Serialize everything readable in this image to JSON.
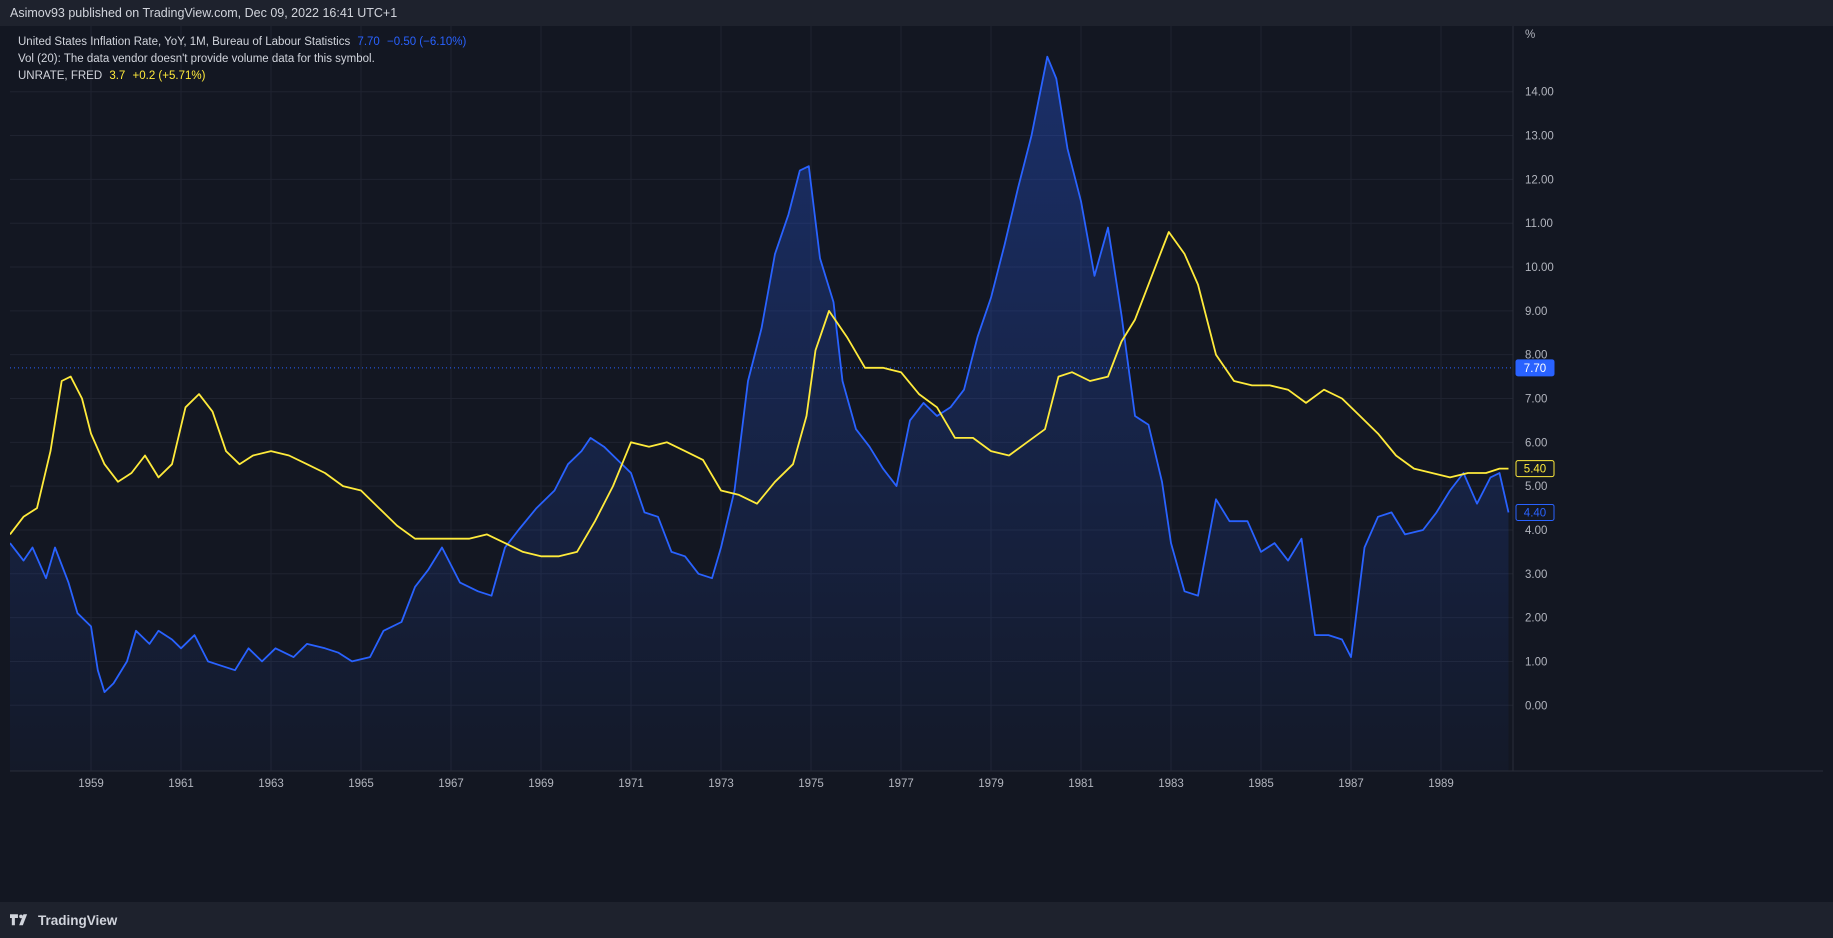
{
  "header": {
    "publish_line": "Asimov93 published on TradingView.com, Dec 09, 2022 16:41 UTC+1"
  },
  "legend": {
    "series1_name": "United States Inflation Rate, YoY, 1M, Bureau of Labour Statistics",
    "series1_value": "7.70",
    "series1_change": "−0.50 (−6.10%)",
    "vol_line": "Vol (20): The data vendor doesn't provide volume data for this symbol.",
    "series2_name": "UNRATE, FRED",
    "series2_value": "3.7",
    "series2_change": "+0.2 (+5.71%)"
  },
  "footer": {
    "brand": "TradingView",
    "logo_icon": "tradingview-logo-icon"
  },
  "colors": {
    "background": "#131722",
    "grid": "#1f2330",
    "inflation": "#2962ff",
    "unemployment": "#ffeb3b",
    "axis_text": "#b2b5be"
  },
  "chart_data": {
    "type": "line",
    "unit_label": "%",
    "xlim": [
      1957.2,
      1990.6
    ],
    "ylim": [
      -1.5,
      15.5
    ],
    "x_ticks": [
      "1959",
      "1961",
      "1963",
      "1965",
      "1967",
      "1969",
      "1971",
      "1973",
      "1975",
      "1977",
      "1979",
      "1981",
      "1983",
      "1985",
      "1987",
      "1989"
    ],
    "y_ticks": [
      "0.00",
      "1.00",
      "2.00",
      "3.00",
      "4.00",
      "5.00",
      "6.00",
      "7.00",
      "8.00",
      "9.00",
      "10.00",
      "11.00",
      "12.00",
      "13.00",
      "14.00"
    ],
    "last_value_labels": [
      "7.70",
      "5.40",
      "4.40"
    ],
    "current_price_line": 7.7,
    "grid": true,
    "series": [
      {
        "name": "United States Inflation Rate, YoY, 1M, Bureau of Labour Statistics",
        "area_fill": true,
        "points": [
          [
            1957.2,
            3.7
          ],
          [
            1957.5,
            3.3
          ],
          [
            1957.7,
            3.6
          ],
          [
            1958.0,
            2.9
          ],
          [
            1958.2,
            3.6
          ],
          [
            1958.5,
            2.8
          ],
          [
            1958.7,
            2.1
          ],
          [
            1959.0,
            1.8
          ],
          [
            1959.15,
            0.8
          ],
          [
            1959.3,
            0.3
          ],
          [
            1959.5,
            0.5
          ],
          [
            1959.8,
            1.0
          ],
          [
            1960.0,
            1.7
          ],
          [
            1960.3,
            1.4
          ],
          [
            1960.5,
            1.7
          ],
          [
            1960.8,
            1.5
          ],
          [
            1961.0,
            1.3
          ],
          [
            1961.3,
            1.6
          ],
          [
            1961.6,
            1.0
          ],
          [
            1961.9,
            0.9
          ],
          [
            1962.2,
            0.8
          ],
          [
            1962.5,
            1.3
          ],
          [
            1962.8,
            1.0
          ],
          [
            1963.1,
            1.3
          ],
          [
            1963.5,
            1.1
          ],
          [
            1963.8,
            1.4
          ],
          [
            1964.2,
            1.3
          ],
          [
            1964.5,
            1.2
          ],
          [
            1964.8,
            1.0
          ],
          [
            1965.2,
            1.1
          ],
          [
            1965.5,
            1.7
          ],
          [
            1965.9,
            1.9
          ],
          [
            1966.2,
            2.7
          ],
          [
            1966.5,
            3.1
          ],
          [
            1966.8,
            3.6
          ],
          [
            1967.2,
            2.8
          ],
          [
            1967.6,
            2.6
          ],
          [
            1967.9,
            2.5
          ],
          [
            1968.2,
            3.6
          ],
          [
            1968.5,
            4.0
          ],
          [
            1968.9,
            4.5
          ],
          [
            1969.3,
            4.9
          ],
          [
            1969.6,
            5.5
          ],
          [
            1969.9,
            5.8
          ],
          [
            1970.1,
            6.1
          ],
          [
            1970.4,
            5.9
          ],
          [
            1970.7,
            5.6
          ],
          [
            1971.0,
            5.3
          ],
          [
            1971.3,
            4.4
          ],
          [
            1971.6,
            4.3
          ],
          [
            1971.9,
            3.5
          ],
          [
            1972.2,
            3.4
          ],
          [
            1972.5,
            3.0
          ],
          [
            1972.8,
            2.9
          ],
          [
            1973.0,
            3.6
          ],
          [
            1973.3,
            4.9
          ],
          [
            1973.6,
            7.4
          ],
          [
            1973.9,
            8.6
          ],
          [
            1974.2,
            10.3
          ],
          [
            1974.5,
            11.2
          ],
          [
            1974.75,
            12.2
          ],
          [
            1974.95,
            12.3
          ],
          [
            1975.2,
            10.2
          ],
          [
            1975.5,
            9.2
          ],
          [
            1975.7,
            7.4
          ],
          [
            1976.0,
            6.3
          ],
          [
            1976.3,
            5.9
          ],
          [
            1976.6,
            5.4
          ],
          [
            1976.9,
            5.0
          ],
          [
            1977.2,
            6.5
          ],
          [
            1977.5,
            6.9
          ],
          [
            1977.8,
            6.6
          ],
          [
            1978.1,
            6.8
          ],
          [
            1978.4,
            7.2
          ],
          [
            1978.7,
            8.4
          ],
          [
            1979.0,
            9.3
          ],
          [
            1979.3,
            10.5
          ],
          [
            1979.6,
            11.8
          ],
          [
            1979.9,
            13.0
          ],
          [
            1980.25,
            14.8
          ],
          [
            1980.45,
            14.3
          ],
          [
            1980.7,
            12.7
          ],
          [
            1981.0,
            11.5
          ],
          [
            1981.3,
            9.8
          ],
          [
            1981.6,
            10.9
          ],
          [
            1981.9,
            8.9
          ],
          [
            1982.2,
            6.6
          ],
          [
            1982.5,
            6.4
          ],
          [
            1982.8,
            5.1
          ],
          [
            1983.0,
            3.7
          ],
          [
            1983.3,
            2.6
          ],
          [
            1983.6,
            2.5
          ],
          [
            1984.0,
            4.7
          ],
          [
            1984.3,
            4.2
          ],
          [
            1984.7,
            4.2
          ],
          [
            1985.0,
            3.5
          ],
          [
            1985.3,
            3.7
          ],
          [
            1985.6,
            3.3
          ],
          [
            1985.9,
            3.8
          ],
          [
            1986.2,
            1.6
          ],
          [
            1986.5,
            1.6
          ],
          [
            1986.8,
            1.5
          ],
          [
            1987.0,
            1.1
          ],
          [
            1987.3,
            3.6
          ],
          [
            1987.6,
            4.3
          ],
          [
            1987.9,
            4.4
          ],
          [
            1988.2,
            3.9
          ],
          [
            1988.6,
            4.0
          ],
          [
            1988.9,
            4.4
          ],
          [
            1989.2,
            4.9
          ],
          [
            1989.5,
            5.3
          ],
          [
            1989.8,
            4.6
          ],
          [
            1990.1,
            5.2
          ],
          [
            1990.3,
            5.3
          ],
          [
            1990.5,
            4.4
          ]
        ]
      },
      {
        "name": "UNRATE, FRED",
        "area_fill": false,
        "points": [
          [
            1957.2,
            3.9
          ],
          [
            1957.5,
            4.3
          ],
          [
            1957.8,
            4.5
          ],
          [
            1958.1,
            5.8
          ],
          [
            1958.35,
            7.4
          ],
          [
            1958.55,
            7.5
          ],
          [
            1958.8,
            7.0
          ],
          [
            1959.0,
            6.2
          ],
          [
            1959.3,
            5.5
          ],
          [
            1959.6,
            5.1
          ],
          [
            1959.9,
            5.3
          ],
          [
            1960.2,
            5.7
          ],
          [
            1960.5,
            5.2
          ],
          [
            1960.8,
            5.5
          ],
          [
            1961.1,
            6.8
          ],
          [
            1961.4,
            7.1
          ],
          [
            1961.7,
            6.7
          ],
          [
            1962.0,
            5.8
          ],
          [
            1962.3,
            5.5
          ],
          [
            1962.6,
            5.7
          ],
          [
            1963.0,
            5.8
          ],
          [
            1963.4,
            5.7
          ],
          [
            1963.8,
            5.5
          ],
          [
            1964.2,
            5.3
          ],
          [
            1964.6,
            5.0
          ],
          [
            1965.0,
            4.9
          ],
          [
            1965.4,
            4.5
          ],
          [
            1965.8,
            4.1
          ],
          [
            1966.2,
            3.8
          ],
          [
            1966.6,
            3.8
          ],
          [
            1967.0,
            3.8
          ],
          [
            1967.4,
            3.8
          ],
          [
            1967.8,
            3.9
          ],
          [
            1968.2,
            3.7
          ],
          [
            1968.6,
            3.5
          ],
          [
            1969.0,
            3.4
          ],
          [
            1969.4,
            3.4
          ],
          [
            1969.8,
            3.5
          ],
          [
            1970.2,
            4.2
          ],
          [
            1970.6,
            5.0
          ],
          [
            1971.0,
            6.0
          ],
          [
            1971.4,
            5.9
          ],
          [
            1971.8,
            6.0
          ],
          [
            1972.2,
            5.8
          ],
          [
            1972.6,
            5.6
          ],
          [
            1973.0,
            4.9
          ],
          [
            1973.4,
            4.8
          ],
          [
            1973.8,
            4.6
          ],
          [
            1974.2,
            5.1
          ],
          [
            1974.6,
            5.5
          ],
          [
            1974.9,
            6.6
          ],
          [
            1975.1,
            8.1
          ],
          [
            1975.4,
            9.0
          ],
          [
            1975.8,
            8.4
          ],
          [
            1976.2,
            7.7
          ],
          [
            1976.6,
            7.7
          ],
          [
            1977.0,
            7.6
          ],
          [
            1977.4,
            7.1
          ],
          [
            1977.8,
            6.8
          ],
          [
            1978.2,
            6.1
          ],
          [
            1978.6,
            6.1
          ],
          [
            1979.0,
            5.8
          ],
          [
            1979.4,
            5.7
          ],
          [
            1979.8,
            6.0
          ],
          [
            1980.2,
            6.3
          ],
          [
            1980.5,
            7.5
          ],
          [
            1980.8,
            7.6
          ],
          [
            1981.2,
            7.4
          ],
          [
            1981.6,
            7.5
          ],
          [
            1981.9,
            8.3
          ],
          [
            1982.2,
            8.8
          ],
          [
            1982.5,
            9.6
          ],
          [
            1982.8,
            10.4
          ],
          [
            1982.95,
            10.8
          ],
          [
            1983.3,
            10.3
          ],
          [
            1983.6,
            9.6
          ],
          [
            1984.0,
            8.0
          ],
          [
            1984.4,
            7.4
          ],
          [
            1984.8,
            7.3
          ],
          [
            1985.2,
            7.3
          ],
          [
            1985.6,
            7.2
          ],
          [
            1986.0,
            6.9
          ],
          [
            1986.4,
            7.2
          ],
          [
            1986.8,
            7.0
          ],
          [
            1987.2,
            6.6
          ],
          [
            1987.6,
            6.2
          ],
          [
            1988.0,
            5.7
          ],
          [
            1988.4,
            5.4
          ],
          [
            1988.8,
            5.3
          ],
          [
            1989.2,
            5.2
          ],
          [
            1989.6,
            5.3
          ],
          [
            1990.0,
            5.3
          ],
          [
            1990.3,
            5.4
          ],
          [
            1990.5,
            5.4
          ]
        ]
      }
    ]
  }
}
